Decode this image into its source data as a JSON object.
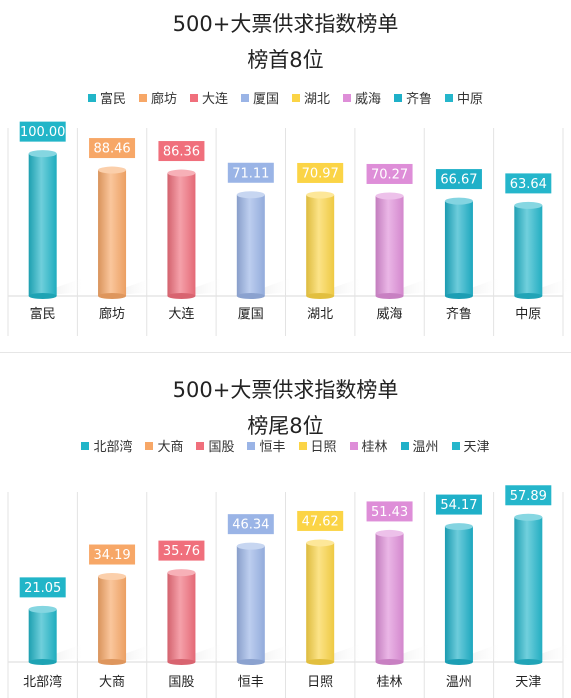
{
  "colors": {
    "富民": "#21B5C8",
    "廊坊": "#F7A767",
    "大连": "#F06F7C",
    "厦国": "#9AB4E6",
    "湖北": "#FBD446",
    "威海": "#DE8ED8",
    "齐鲁": "#1FB0C8",
    "中原": "#25B6CB",
    "北部湾": "#21B5C8",
    "大商": "#F7A767",
    "国股": "#F06F7C",
    "恒丰": "#9AB4E6",
    "日照": "#FBD446",
    "桂林": "#DE8ED8",
    "温州": "#1FB0C8",
    "天津": "#25B6CB"
  },
  "chart_data": [
    {
      "type": "bar",
      "title": "500+大票供求指数榜单",
      "subtitle": "榜首8位",
      "categories": [
        "富民",
        "廊坊",
        "大连",
        "厦国",
        "湖北",
        "威海",
        "齐鲁",
        "中原"
      ],
      "values": [
        100.0,
        88.46,
        86.36,
        71.11,
        70.97,
        70.27,
        66.67,
        63.64
      ],
      "value_labels": [
        "100.00",
        "88.46",
        "86.36",
        "71.11",
        "70.97",
        "70.27",
        "66.67",
        "63.64"
      ],
      "legend": [
        "富民",
        "廊坊",
        "大连",
        "厦国",
        "湖北",
        "威海",
        "齐鲁",
        "中原"
      ],
      "legend_position": "top",
      "ylim": [
        0,
        118
      ],
      "grid": "vertical separators"
    },
    {
      "type": "bar",
      "title": "500+大票供求指数榜单",
      "subtitle": "榜尾8位",
      "categories": [
        "北部湾",
        "大商",
        "国股",
        "恒丰",
        "日照",
        "桂林",
        "温州",
        "天津"
      ],
      "values": [
        21.05,
        34.19,
        35.76,
        46.34,
        47.62,
        51.43,
        54.17,
        57.89
      ],
      "value_labels": [
        "21.05",
        "34.19",
        "35.76",
        "46.34",
        "47.62",
        "51.43",
        "54.17",
        "57.89"
      ],
      "legend": [
        "北部湾",
        "大商",
        "国股",
        "恒丰",
        "日照",
        "桂林",
        "温州",
        "天津"
      ],
      "legend_position": "top",
      "ylim": [
        0,
        68
      ],
      "grid": "vertical separators"
    }
  ]
}
